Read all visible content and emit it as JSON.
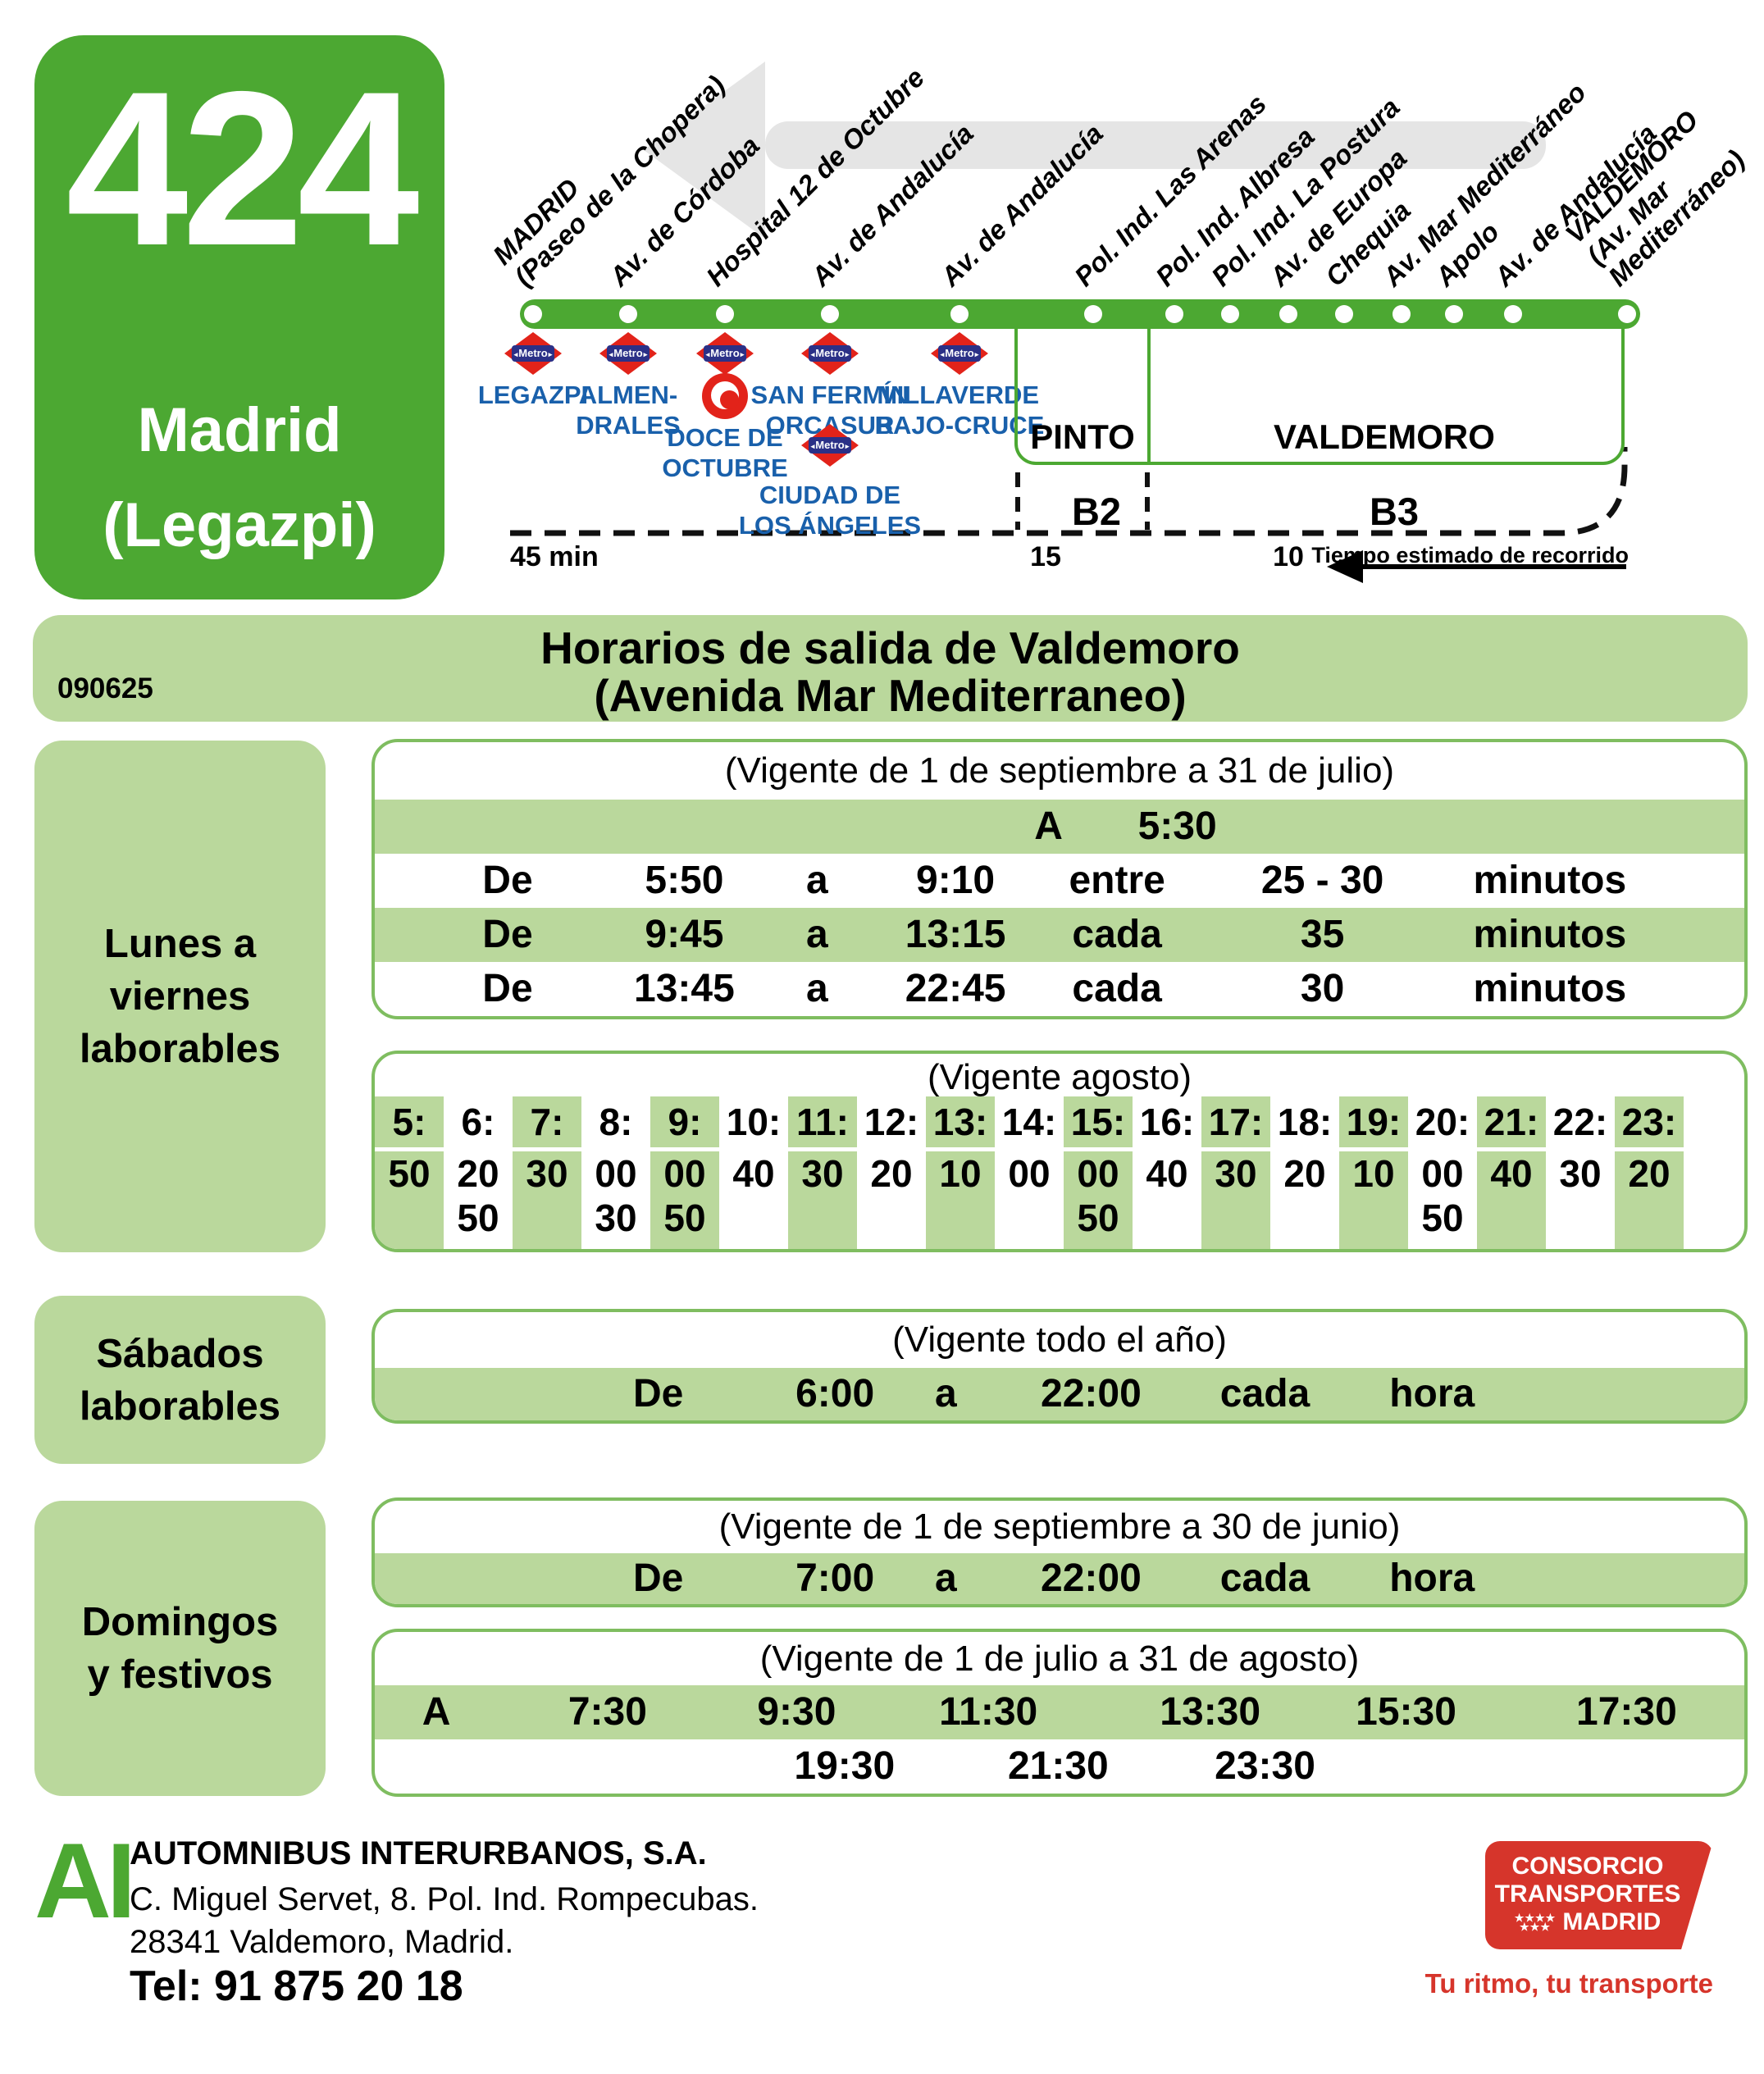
{
  "route_header": {
    "line_number": "424",
    "destination": [
      "Madrid",
      "(Legazpi)"
    ],
    "stops": [
      {
        "label": [
          "MADRID",
          "(Paseo de la Chopera)"
        ]
      },
      {
        "label": [
          "Av. de Córdoba"
        ]
      },
      {
        "label": [
          "Hospital 12 de Octubre"
        ]
      },
      {
        "label": [
          "Av. de Andalucía"
        ]
      },
      {
        "label": [
          "Av. de Andalucía"
        ]
      },
      {
        "label": [
          "Pol. Ind. Las Arenas"
        ]
      },
      {
        "label": [
          "Pol. Ind. Albresa"
        ]
      },
      {
        "label": [
          "Pol. Ind. La Postura"
        ]
      },
      {
        "label": [
          "Av. de Europa"
        ]
      },
      {
        "label": [
          "Chequia"
        ]
      },
      {
        "label": [
          "Av. Mar Mediterráneo"
        ]
      },
      {
        "label": [
          "Apolo"
        ]
      },
      {
        "label": [
          "Av. de Andalucía"
        ]
      },
      {
        "label": [
          "VALDEMORO",
          "(Av. Mar",
          "Mediterráneo)"
        ]
      }
    ],
    "metro_word": "Metro",
    "metro_stations": [
      {
        "name": [
          "LEGAZPI"
        ]
      },
      {
        "name": [
          "ALMEN-",
          "DRALES"
        ]
      },
      {
        "name": [
          "DOCE DE",
          "OCTUBRE"
        ]
      },
      {
        "name": [
          "SAN FERMÍN",
          "ORCASUR"
        ]
      },
      {
        "name": [
          "VILLAVERDE",
          "BAJO-CRUCE"
        ]
      }
    ],
    "extra_metro_station": {
      "name": [
        "CIUDAD DE",
        "LOS ÁNGELES"
      ]
    },
    "zones": [
      {
        "name": "PINTO",
        "fare": "B2",
        "time": "15"
      },
      {
        "name": "VALDEMORO",
        "fare": "B3",
        "time": "10"
      }
    ],
    "travel_time_start": "45 min",
    "travel_time_note": "Tiempo estimado de recorrido"
  },
  "title_band": {
    "code": "090625",
    "title": "Horarios de salida de Valdemoro",
    "subtitle": "(Avenida Mar Mediterraneo)"
  },
  "schedule": {
    "weekday": {
      "label": [
        "Lunes a",
        "viernes",
        "laborables"
      ],
      "tables": [
        {
          "validity": "(Vigente de 1 de septiembre a 31 de julio)",
          "rows": [
            [
              "A",
              "5:30"
            ],
            [
              "De",
              "5:50",
              "a",
              "9:10",
              "entre",
              "25 - 30",
              "minutos"
            ],
            [
              "De",
              "9:45",
              "a",
              "13:15",
              "cada",
              "35",
              "minutos"
            ],
            [
              "De",
              "13:45",
              "a",
              "22:45",
              "cada",
              "30",
              "minutos"
            ]
          ]
        },
        {
          "validity": "(Vigente agosto)",
          "hours": [
            "5:",
            "6:",
            "7:",
            "8:",
            "9:",
            "10:",
            "11:",
            "12:",
            "13:",
            "14:",
            "15:",
            "16:",
            "17:",
            "18:",
            "19:",
            "20:",
            "21:",
            "22:",
            "23:"
          ],
          "minutes": [
            [
              "50"
            ],
            [
              "20",
              "50"
            ],
            [
              "30"
            ],
            [
              "00",
              "30"
            ],
            [
              "00",
              "50"
            ],
            [
              "40"
            ],
            [
              "30"
            ],
            [
              "20"
            ],
            [
              "10"
            ],
            [
              "00"
            ],
            [
              "00",
              "50"
            ],
            [
              "40"
            ],
            [
              "30"
            ],
            [
              "20"
            ],
            [
              "10"
            ],
            [
              "00",
              "50"
            ],
            [
              "40"
            ],
            [
              "30"
            ],
            [
              "20"
            ]
          ]
        }
      ]
    },
    "saturday": {
      "label": [
        "Sábados",
        "laborables"
      ],
      "tables": [
        {
          "validity": "(Vigente todo el año)",
          "rows": [
            [
              "De",
              "6:00",
              "a",
              "22:00",
              "cada",
              "hora"
            ]
          ]
        }
      ]
    },
    "sunday": {
      "label": [
        "Domingos",
        "y festivos"
      ],
      "tables": [
        {
          "validity": "(Vigente de 1 de septiembre a 30 de junio)",
          "rows": [
            [
              "De",
              "7:00",
              "a",
              "22:00",
              "cada",
              "hora"
            ]
          ]
        },
        {
          "validity": "(Vigente de 1 de julio a 31 de agosto)",
          "rows": [
            [
              "A",
              "7:30",
              "9:30",
              "11:30",
              "13:30",
              "15:30",
              "17:30"
            ],
            [
              "19:30",
              "21:30",
              "23:30"
            ]
          ]
        }
      ]
    }
  },
  "footer": {
    "logo": "AI",
    "company": "AUTOMNIBUS INTERURBANOS, S.A.",
    "address_line1": "C. Miguel Servet, 8.  Pol. Ind. Rompecubas.",
    "address_line2": "28341 Valdemoro, Madrid.",
    "phone": "Tel: 91 875 20 18",
    "ctm_lines": [
      "CONSORCIO",
      "TRANSPORTES",
      "MADRID"
    ],
    "slogan": "Tu ritmo, tu transporte"
  },
  "colors": {
    "route_green": "#4CA832",
    "light_green": "#BAD89C",
    "table_border_green": "#7FBD60",
    "metro_red": "#E2231A",
    "metro_blue": "#2B3087",
    "station_blue": "#1960AB",
    "consorcio_red": "#D6352B"
  }
}
